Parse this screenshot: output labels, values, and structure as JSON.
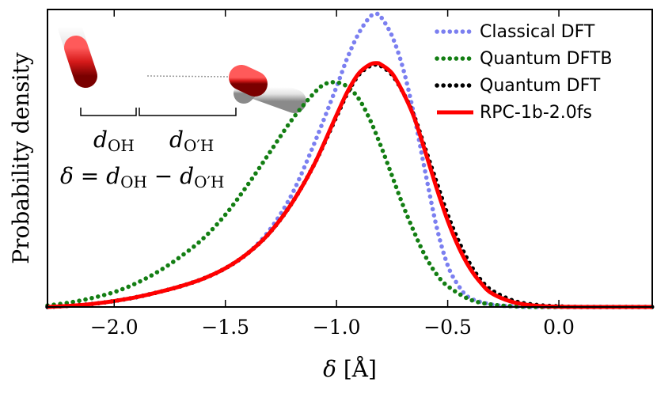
{
  "chart_data": {
    "type": "line",
    "title": "",
    "xlabel": "δ [Å]",
    "ylabel": "Probability density",
    "xlim": [
      -2.3,
      0.42
    ],
    "ylim": [
      0,
      1.0
    ],
    "xticks": [
      -2.0,
      -1.5,
      -1.0,
      -0.5,
      0.0
    ],
    "xtick_labels": [
      "−2.0",
      "−1.5",
      "−1.0",
      "−0.5",
      "0.0"
    ],
    "y_tick_labels_shown": false,
    "legend_position": "top-right",
    "series": [
      {
        "name": "Classical DFT",
        "style": "dotted",
        "color": "#7b7ff0",
        "x": [
          -2.3,
          -2.2,
          -2.1,
          -2.0,
          -1.9,
          -1.8,
          -1.7,
          -1.6,
          -1.5,
          -1.4,
          -1.3,
          -1.2,
          -1.1,
          -1.0,
          -0.95,
          -0.9,
          -0.85,
          -0.82,
          -0.8,
          -0.75,
          -0.7,
          -0.65,
          -0.6,
          -0.55,
          -0.5,
          -0.45,
          -0.4,
          -0.3,
          -0.2,
          -0.1,
          0.0,
          0.1,
          0.2,
          0.3,
          0.42
        ],
        "y": [
          0.0,
          0.004,
          0.01,
          0.02,
          0.033,
          0.05,
          0.07,
          0.095,
          0.13,
          0.18,
          0.26,
          0.38,
          0.55,
          0.74,
          0.84,
          0.92,
          0.975,
          0.985,
          0.975,
          0.91,
          0.8,
          0.64,
          0.45,
          0.27,
          0.14,
          0.07,
          0.03,
          0.008,
          0.002,
          0.0,
          0.0,
          0.0,
          0.0,
          0.0,
          0.0
        ]
      },
      {
        "name": "Quantum DFTB",
        "style": "dotted",
        "color": "#137e13",
        "x": [
          -2.3,
          -2.2,
          -2.1,
          -2.0,
          -1.9,
          -1.8,
          -1.7,
          -1.6,
          -1.5,
          -1.4,
          -1.3,
          -1.2,
          -1.1,
          -1.05,
          -1.0,
          -0.95,
          -0.9,
          -0.85,
          -0.8,
          -0.75,
          -0.7,
          -0.65,
          -0.6,
          -0.55,
          -0.5,
          -0.4,
          -0.3,
          -0.2,
          -0.1,
          0.0,
          0.1,
          0.2,
          0.3,
          0.42
        ],
        "y": [
          0.005,
          0.015,
          0.03,
          0.05,
          0.08,
          0.12,
          0.17,
          0.23,
          0.31,
          0.41,
          0.52,
          0.63,
          0.72,
          0.75,
          0.755,
          0.74,
          0.7,
          0.63,
          0.54,
          0.44,
          0.34,
          0.25,
          0.17,
          0.11,
          0.07,
          0.025,
          0.008,
          0.002,
          0.0,
          0.0,
          0.0,
          0.0,
          0.0,
          0.0
        ]
      },
      {
        "name": "Quantum DFT",
        "style": "dotted",
        "color": "#000000",
        "x": [
          -2.3,
          -2.2,
          -2.1,
          -2.0,
          -1.9,
          -1.8,
          -1.7,
          -1.6,
          -1.5,
          -1.4,
          -1.3,
          -1.2,
          -1.1,
          -1.0,
          -0.95,
          -0.9,
          -0.85,
          -0.82,
          -0.8,
          -0.75,
          -0.7,
          -0.65,
          -0.6,
          -0.55,
          -0.5,
          -0.45,
          -0.4,
          -0.35,
          -0.3,
          -0.2,
          -0.1,
          0.0,
          0.1,
          0.2,
          0.3,
          0.42
        ],
        "y": [
          0.0,
          0.004,
          0.01,
          0.02,
          0.033,
          0.05,
          0.07,
          0.095,
          0.13,
          0.18,
          0.25,
          0.35,
          0.48,
          0.64,
          0.72,
          0.78,
          0.81,
          0.815,
          0.81,
          0.78,
          0.72,
          0.64,
          0.53,
          0.42,
          0.31,
          0.22,
          0.145,
          0.09,
          0.055,
          0.02,
          0.007,
          0.002,
          0.0,
          0.0,
          0.0,
          0.0
        ]
      },
      {
        "name": "RPC-1b-2.0fs",
        "style": "solid",
        "color": "#ff0000",
        "x": [
          -2.3,
          -2.2,
          -2.1,
          -2.0,
          -1.9,
          -1.8,
          -1.7,
          -1.6,
          -1.5,
          -1.4,
          -1.3,
          -1.2,
          -1.1,
          -1.0,
          -0.95,
          -0.9,
          -0.85,
          -0.82,
          -0.8,
          -0.75,
          -0.7,
          -0.65,
          -0.6,
          -0.55,
          -0.5,
          -0.45,
          -0.4,
          -0.35,
          -0.3,
          -0.2,
          -0.1,
          0.0,
          0.1,
          0.2,
          0.3,
          0.42
        ],
        "y": [
          0.0,
          0.004,
          0.01,
          0.02,
          0.033,
          0.05,
          0.07,
          0.095,
          0.13,
          0.18,
          0.25,
          0.35,
          0.48,
          0.645,
          0.725,
          0.785,
          0.815,
          0.82,
          0.815,
          0.785,
          0.72,
          0.635,
          0.52,
          0.4,
          0.29,
          0.2,
          0.13,
          0.08,
          0.045,
          0.015,
          0.004,
          0.001,
          0.0,
          0.0,
          0.0,
          0.0
        ]
      }
    ],
    "inset_annotations": {
      "d_oh": "d_OH",
      "d_oprime_h": "d_O′H",
      "equation": "δ = d_OH − d_O′H"
    }
  }
}
